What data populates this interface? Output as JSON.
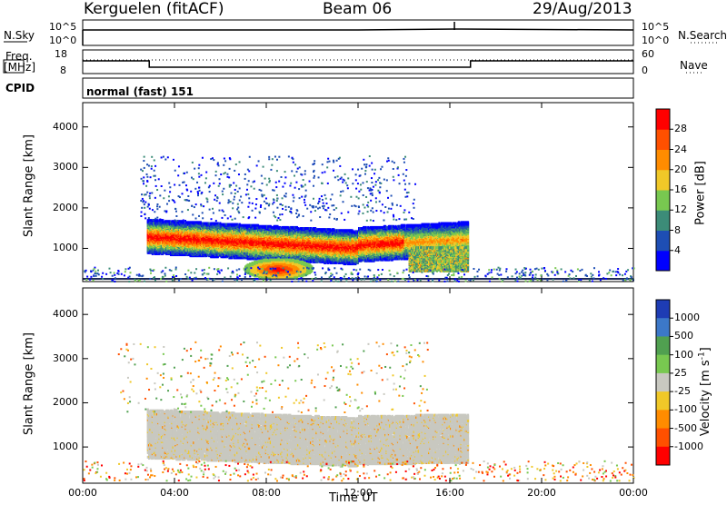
{
  "header": {
    "radar": "Kerguelen (fitACF)",
    "beam": "Beam 06",
    "date": "29/Aug/2013"
  },
  "top_panels": {
    "nsky_label": "N.Sky",
    "nsky_ticks": [
      "10^5",
      "10^0"
    ],
    "nsearch_label": "N.Search",
    "nsearch_ticks": [
      "10^5",
      "10^0"
    ],
    "freq_label": "Freq.",
    "freq_unit": "[MHz]",
    "freq_ticks": [
      "18",
      "8"
    ],
    "nave_label": "Nave",
    "nave_ticks": [
      "60",
      "0"
    ],
    "cpid_label": "CPID",
    "cpid_value": "normal (fast) 151"
  },
  "chart_data": [
    {
      "type": "heatmap",
      "name": "Power",
      "ylabel": "Slant Range [km]",
      "ylim": [
        180,
        4600
      ],
      "yticks": [
        "1000",
        "2000",
        "3000",
        "4000"
      ],
      "xlim_hours": [
        0,
        24
      ],
      "colorbar_label": "Power [dB]",
      "colorbar_ticks": [
        "4",
        "8",
        "12",
        "16",
        "20",
        "24",
        "28"
      ],
      "colors": [
        "#0000ff",
        "#1e4eb4",
        "#3c8c78",
        "#78c850",
        "#f0c828",
        "#ff8c00",
        "#ff5000",
        "#ff0000"
      ],
      "features": [
        {
          "t_start": 2.8,
          "t_end": 16.8,
          "range_start": 300,
          "range_end": 1700,
          "value_dB": 22
        },
        {
          "t_start": 7.5,
          "t_end": 9.5,
          "range_start": 350,
          "range_end": 650,
          "value_dB": 28
        },
        {
          "t_start": 14.3,
          "t_end": 16.8,
          "range_start": 500,
          "range_end": 1000,
          "value_dB": 18
        }
      ]
    },
    {
      "type": "heatmap",
      "name": "Velocity",
      "ylabel": "Slant Range [km]",
      "ylim": [
        180,
        4600
      ],
      "yticks": [
        "1000",
        "2000",
        "3000",
        "4000"
      ],
      "xlim_hours": [
        0,
        24
      ],
      "colorbar_label": "Velocity [m s^-1]",
      "colorbar_ticks": [
        "1000",
        "500",
        "100",
        "25",
        "-25",
        "-100",
        "-500",
        "-1000"
      ],
      "colors": [
        "#1e3cb4",
        "#3c78c8",
        "#50a050",
        "#78c850",
        "#c8c8c0",
        "#f0c828",
        "#ff8c00",
        "#ff5000",
        "#ff0000"
      ],
      "features": [
        {
          "t_start": 2.8,
          "t_end": 16.8,
          "range_start": 300,
          "range_end": 1800,
          "value_ms": 0
        }
      ]
    }
  ],
  "xaxis": {
    "label": "Time UT",
    "ticks": [
      "00:00",
      "04:00",
      "08:00",
      "12:00",
      "16:00",
      "20:00",
      "00:00"
    ]
  }
}
